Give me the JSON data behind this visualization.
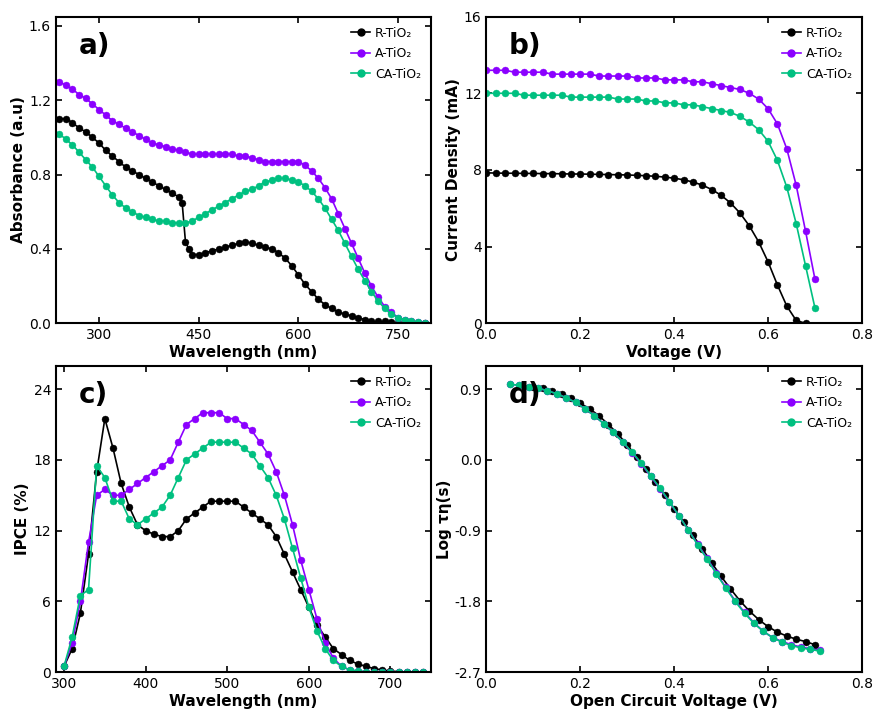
{
  "colors": {
    "black": "#000000",
    "purple": "#8B00FF",
    "green": "#00C080"
  },
  "panel_a": {
    "title": "a)",
    "xlabel": "Wavelength (nm)",
    "ylabel": "Absorbance (a.u)",
    "xlim": [
      235,
      800
    ],
    "ylim": [
      0.0,
      1.65
    ],
    "yticks": [
      0.0,
      0.4,
      0.8,
      1.2,
      1.6
    ],
    "xticks": [
      300,
      450,
      600,
      750
    ],
    "R_x": [
      240,
      250,
      260,
      270,
      280,
      290,
      300,
      310,
      320,
      330,
      340,
      350,
      360,
      370,
      380,
      390,
      400,
      410,
      420,
      425,
      430,
      435,
      440,
      450,
      460,
      470,
      480,
      490,
      500,
      510,
      520,
      530,
      540,
      550,
      560,
      570,
      580,
      590,
      600,
      610,
      620,
      630,
      640,
      650,
      660,
      670,
      680,
      690,
      700,
      710,
      720,
      730,
      740,
      750,
      760,
      770,
      780,
      790
    ],
    "R_y": [
      1.1,
      1.1,
      1.08,
      1.05,
      1.03,
      1.0,
      0.97,
      0.93,
      0.9,
      0.87,
      0.84,
      0.82,
      0.8,
      0.78,
      0.76,
      0.74,
      0.72,
      0.7,
      0.68,
      0.65,
      0.44,
      0.4,
      0.37,
      0.37,
      0.38,
      0.39,
      0.4,
      0.41,
      0.42,
      0.43,
      0.44,
      0.43,
      0.42,
      0.41,
      0.4,
      0.38,
      0.35,
      0.31,
      0.26,
      0.21,
      0.17,
      0.13,
      0.1,
      0.08,
      0.06,
      0.05,
      0.04,
      0.03,
      0.02,
      0.01,
      0.01,
      0.01,
      0.005,
      0.003,
      0.001,
      0.0,
      0.0,
      0.0
    ],
    "A_x": [
      240,
      250,
      260,
      270,
      280,
      290,
      300,
      310,
      320,
      330,
      340,
      350,
      360,
      370,
      380,
      390,
      400,
      410,
      420,
      430,
      440,
      450,
      460,
      470,
      480,
      490,
      500,
      510,
      520,
      530,
      540,
      550,
      560,
      570,
      580,
      590,
      600,
      610,
      620,
      630,
      640,
      650,
      660,
      670,
      680,
      690,
      700,
      710,
      720,
      730,
      740,
      750,
      760,
      770,
      780,
      790
    ],
    "A_y": [
      1.3,
      1.28,
      1.26,
      1.23,
      1.21,
      1.18,
      1.15,
      1.12,
      1.09,
      1.07,
      1.05,
      1.03,
      1.01,
      0.99,
      0.97,
      0.96,
      0.95,
      0.94,
      0.93,
      0.92,
      0.91,
      0.91,
      0.91,
      0.91,
      0.91,
      0.91,
      0.91,
      0.9,
      0.9,
      0.89,
      0.88,
      0.87,
      0.87,
      0.87,
      0.87,
      0.87,
      0.87,
      0.85,
      0.82,
      0.78,
      0.73,
      0.67,
      0.59,
      0.51,
      0.43,
      0.35,
      0.27,
      0.2,
      0.14,
      0.09,
      0.06,
      0.03,
      0.02,
      0.01,
      0.005,
      0.0
    ],
    "CA_x": [
      240,
      250,
      260,
      270,
      280,
      290,
      300,
      310,
      320,
      330,
      340,
      350,
      360,
      370,
      380,
      390,
      400,
      410,
      420,
      430,
      440,
      450,
      460,
      470,
      480,
      490,
      500,
      510,
      520,
      530,
      540,
      550,
      560,
      570,
      580,
      590,
      600,
      610,
      620,
      630,
      640,
      650,
      660,
      670,
      680,
      690,
      700,
      710,
      720,
      730,
      740,
      750,
      760,
      770,
      780,
      790
    ],
    "CA_y": [
      1.02,
      0.99,
      0.96,
      0.92,
      0.88,
      0.84,
      0.79,
      0.74,
      0.69,
      0.65,
      0.62,
      0.6,
      0.58,
      0.57,
      0.56,
      0.55,
      0.55,
      0.54,
      0.54,
      0.54,
      0.55,
      0.57,
      0.59,
      0.61,
      0.63,
      0.65,
      0.67,
      0.69,
      0.71,
      0.72,
      0.74,
      0.76,
      0.77,
      0.78,
      0.78,
      0.77,
      0.76,
      0.74,
      0.71,
      0.67,
      0.62,
      0.56,
      0.5,
      0.43,
      0.36,
      0.29,
      0.23,
      0.17,
      0.12,
      0.08,
      0.05,
      0.03,
      0.02,
      0.01,
      0.005,
      0.0
    ]
  },
  "panel_b": {
    "title": "b)",
    "xlabel": "Voltage (V)",
    "ylabel": "Current Density (mA)",
    "xlim": [
      0.0,
      0.8
    ],
    "ylim": [
      0,
      16
    ],
    "yticks": [
      0,
      4,
      8,
      12,
      16
    ],
    "xticks": [
      0.0,
      0.2,
      0.4,
      0.6,
      0.8
    ],
    "R_x": [
      0.0,
      0.02,
      0.04,
      0.06,
      0.08,
      0.1,
      0.12,
      0.14,
      0.16,
      0.18,
      0.2,
      0.22,
      0.24,
      0.26,
      0.28,
      0.3,
      0.32,
      0.34,
      0.36,
      0.38,
      0.4,
      0.42,
      0.44,
      0.46,
      0.48,
      0.5,
      0.52,
      0.54,
      0.56,
      0.58,
      0.6,
      0.62,
      0.64,
      0.66,
      0.68
    ],
    "R_y": [
      7.85,
      7.84,
      7.83,
      7.83,
      7.82,
      7.82,
      7.81,
      7.81,
      7.8,
      7.79,
      7.79,
      7.78,
      7.77,
      7.76,
      7.75,
      7.74,
      7.72,
      7.7,
      7.67,
      7.63,
      7.57,
      7.49,
      7.37,
      7.21,
      6.98,
      6.68,
      6.28,
      5.76,
      5.09,
      4.25,
      3.21,
      2.0,
      0.9,
      0.15,
      0.0
    ],
    "A_x": [
      0.0,
      0.02,
      0.04,
      0.06,
      0.08,
      0.1,
      0.12,
      0.14,
      0.16,
      0.18,
      0.2,
      0.22,
      0.24,
      0.26,
      0.28,
      0.3,
      0.32,
      0.34,
      0.36,
      0.38,
      0.4,
      0.42,
      0.44,
      0.46,
      0.48,
      0.5,
      0.52,
      0.54,
      0.56,
      0.58,
      0.6,
      0.62,
      0.64,
      0.66,
      0.68,
      0.7
    ],
    "A_y": [
      13.2,
      13.2,
      13.2,
      13.1,
      13.1,
      13.1,
      13.1,
      13.0,
      13.0,
      13.0,
      13.0,
      13.0,
      12.9,
      12.9,
      12.9,
      12.9,
      12.8,
      12.8,
      12.8,
      12.7,
      12.7,
      12.7,
      12.6,
      12.6,
      12.5,
      12.4,
      12.3,
      12.2,
      12.0,
      11.7,
      11.2,
      10.4,
      9.1,
      7.2,
      4.8,
      2.3
    ],
    "CA_x": [
      0.0,
      0.02,
      0.04,
      0.06,
      0.08,
      0.1,
      0.12,
      0.14,
      0.16,
      0.18,
      0.2,
      0.22,
      0.24,
      0.26,
      0.28,
      0.3,
      0.32,
      0.34,
      0.36,
      0.38,
      0.4,
      0.42,
      0.44,
      0.46,
      0.48,
      0.5,
      0.52,
      0.54,
      0.56,
      0.58,
      0.6,
      0.62,
      0.64,
      0.66,
      0.68,
      0.7
    ],
    "CA_y": [
      12.0,
      12.0,
      12.0,
      12.0,
      11.9,
      11.9,
      11.9,
      11.9,
      11.9,
      11.8,
      11.8,
      11.8,
      11.8,
      11.8,
      11.7,
      11.7,
      11.7,
      11.6,
      11.6,
      11.5,
      11.5,
      11.4,
      11.4,
      11.3,
      11.2,
      11.1,
      11.0,
      10.8,
      10.5,
      10.1,
      9.5,
      8.5,
      7.1,
      5.2,
      3.0,
      0.8
    ]
  },
  "panel_c": {
    "title": "c)",
    "xlabel": "Wavelength (nm)",
    "ylabel": "IPCE (%)",
    "xlim": [
      290,
      750
    ],
    "ylim": [
      0,
      26
    ],
    "yticks": [
      0,
      6,
      12,
      18,
      24
    ],
    "xticks": [
      300,
      400,
      500,
      600,
      700
    ],
    "R_x": [
      300,
      310,
      320,
      330,
      340,
      350,
      360,
      370,
      380,
      390,
      400,
      410,
      420,
      430,
      440,
      450,
      460,
      470,
      480,
      490,
      500,
      510,
      520,
      530,
      540,
      550,
      560,
      570,
      580,
      590,
      600,
      610,
      620,
      630,
      640,
      650,
      660,
      670,
      680,
      690,
      700,
      710,
      720,
      730,
      740
    ],
    "R_y": [
      0.5,
      2.0,
      5.0,
      10.0,
      17.0,
      21.5,
      19.0,
      16.0,
      14.0,
      12.5,
      12.0,
      11.7,
      11.5,
      11.5,
      12.0,
      13.0,
      13.5,
      14.0,
      14.5,
      14.5,
      14.5,
      14.5,
      14.0,
      13.5,
      13.0,
      12.5,
      11.5,
      10.0,
      8.5,
      7.0,
      5.5,
      4.0,
      3.0,
      2.0,
      1.5,
      1.0,
      0.7,
      0.5,
      0.3,
      0.2,
      0.1,
      0.05,
      0.02,
      0.01,
      0.0
    ],
    "A_x": [
      300,
      310,
      320,
      330,
      340,
      350,
      360,
      370,
      380,
      390,
      400,
      410,
      420,
      430,
      440,
      450,
      460,
      470,
      480,
      490,
      500,
      510,
      520,
      530,
      540,
      550,
      560,
      570,
      580,
      590,
      600,
      610,
      620,
      630,
      640,
      650,
      660,
      670,
      680,
      690,
      700,
      710,
      720,
      730,
      740
    ],
    "A_y": [
      0.5,
      2.5,
      6.0,
      11.0,
      15.0,
      15.5,
      15.0,
      15.0,
      15.5,
      16.0,
      16.5,
      17.0,
      17.5,
      18.0,
      19.5,
      21.0,
      21.5,
      22.0,
      22.0,
      22.0,
      21.5,
      21.5,
      21.0,
      20.5,
      19.5,
      18.5,
      17.0,
      15.0,
      12.5,
      9.5,
      7.0,
      4.5,
      2.5,
      1.2,
      0.5,
      0.2,
      0.1,
      0.05,
      0.02,
      0.01,
      0.0,
      0.0,
      0.0,
      0.0,
      0.0
    ],
    "CA_x": [
      300,
      310,
      320,
      330,
      340,
      350,
      360,
      370,
      380,
      390,
      400,
      410,
      420,
      430,
      440,
      450,
      460,
      470,
      480,
      490,
      500,
      510,
      520,
      530,
      540,
      550,
      560,
      570,
      580,
      590,
      600,
      610,
      620,
      630,
      640,
      650,
      660,
      670,
      680,
      690,
      700,
      710,
      720,
      730,
      740
    ],
    "CA_y": [
      0.5,
      3.0,
      6.5,
      7.0,
      17.5,
      16.5,
      14.5,
      14.5,
      13.0,
      12.5,
      13.0,
      13.5,
      14.0,
      15.0,
      16.5,
      18.0,
      18.5,
      19.0,
      19.5,
      19.5,
      19.5,
      19.5,
      19.0,
      18.5,
      17.5,
      16.5,
      15.0,
      13.0,
      10.5,
      8.0,
      5.5,
      3.5,
      2.0,
      1.0,
      0.5,
      0.2,
      0.1,
      0.05,
      0.02,
      0.01,
      0.0,
      0.0,
      0.0,
      0.0,
      0.0
    ]
  },
  "panel_d": {
    "title": "d)",
    "xlabel": "Open Circuit Voltage (V)",
    "ylabel": "Log τη(s)",
    "xlim": [
      0.0,
      0.8
    ],
    "ylim": [
      -2.7,
      1.2
    ],
    "yticks": [
      -2.7,
      -1.8,
      -0.9,
      0.0,
      0.9
    ],
    "xticks": [
      0.0,
      0.2,
      0.4,
      0.6,
      0.8
    ],
    "R_x": [
      0.1,
      0.12,
      0.14,
      0.16,
      0.18,
      0.2,
      0.22,
      0.24,
      0.26,
      0.28,
      0.3,
      0.32,
      0.34,
      0.36,
      0.38,
      0.4,
      0.42,
      0.44,
      0.46,
      0.48,
      0.5,
      0.52,
      0.54,
      0.56,
      0.58,
      0.6,
      0.62,
      0.64,
      0.66,
      0.68,
      0.7
    ],
    "R_y": [
      0.93,
      0.91,
      0.88,
      0.84,
      0.79,
      0.72,
      0.65,
      0.56,
      0.45,
      0.33,
      0.19,
      0.04,
      -0.12,
      -0.28,
      -0.45,
      -0.62,
      -0.79,
      -0.96,
      -1.13,
      -1.31,
      -1.48,
      -1.64,
      -1.79,
      -1.92,
      -2.03,
      -2.12,
      -2.19,
      -2.24,
      -2.28,
      -2.31,
      -2.35
    ],
    "A_x": [
      0.05,
      0.07,
      0.09,
      0.11,
      0.13,
      0.15,
      0.17,
      0.19,
      0.21,
      0.23,
      0.25,
      0.27,
      0.29,
      0.31,
      0.33,
      0.35,
      0.37,
      0.39,
      0.41,
      0.43,
      0.45,
      0.47,
      0.49,
      0.51,
      0.53,
      0.55,
      0.57,
      0.59,
      0.61,
      0.63,
      0.65,
      0.67,
      0.69,
      0.71
    ],
    "A_y": [
      0.96,
      0.95,
      0.93,
      0.91,
      0.88,
      0.84,
      0.79,
      0.73,
      0.65,
      0.56,
      0.46,
      0.35,
      0.23,
      0.09,
      -0.05,
      -0.21,
      -0.37,
      -0.54,
      -0.71,
      -0.89,
      -1.07,
      -1.25,
      -1.44,
      -1.62,
      -1.79,
      -1.94,
      -2.07,
      -2.18,
      -2.26,
      -2.31,
      -2.35,
      -2.38,
      -2.4,
      -2.42
    ],
    "CA_x": [
      0.05,
      0.07,
      0.09,
      0.11,
      0.13,
      0.15,
      0.17,
      0.19,
      0.21,
      0.23,
      0.25,
      0.27,
      0.29,
      0.31,
      0.33,
      0.35,
      0.37,
      0.39,
      0.41,
      0.43,
      0.45,
      0.47,
      0.49,
      0.51,
      0.53,
      0.55,
      0.57,
      0.59,
      0.61,
      0.63,
      0.65,
      0.67,
      0.69,
      0.71
    ],
    "CA_y": [
      0.96,
      0.95,
      0.93,
      0.91,
      0.88,
      0.84,
      0.79,
      0.73,
      0.65,
      0.56,
      0.46,
      0.35,
      0.23,
      0.1,
      -0.04,
      -0.2,
      -0.36,
      -0.53,
      -0.71,
      -0.89,
      -1.08,
      -1.26,
      -1.45,
      -1.63,
      -1.8,
      -1.95,
      -2.08,
      -2.18,
      -2.26,
      -2.32,
      -2.36,
      -2.39,
      -2.41,
      -2.43
    ]
  },
  "legend_labels": [
    "R-TiO₂",
    "A-TiO₂",
    "CA-TiO₂"
  ],
  "marker_size": 5,
  "line_width": 1.2,
  "background_color": "#ffffff"
}
